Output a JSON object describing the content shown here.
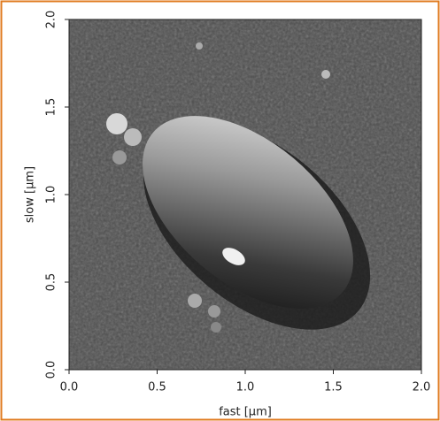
{
  "chart_data": {
    "type": "image",
    "xlabel": "fast [µm]",
    "ylabel": "slow [µm]",
    "xlim": [
      0,
      2
    ],
    "ylim": [
      0,
      2
    ],
    "xticks": [
      {
        "value": 0,
        "label": "0.0"
      },
      0.5,
      {
        "value": 1,
        "label": "1.0"
      },
      1.5,
      {
        "value": 2,
        "label": "2.0"
      }
    ],
    "yticks": [
      {
        "value": 0,
        "label": "0.0"
      },
      0.5,
      {
        "value": 1,
        "label": "1.0"
      },
      1.5,
      {
        "value": 2,
        "label": "2.0"
      }
    ]
  }
}
